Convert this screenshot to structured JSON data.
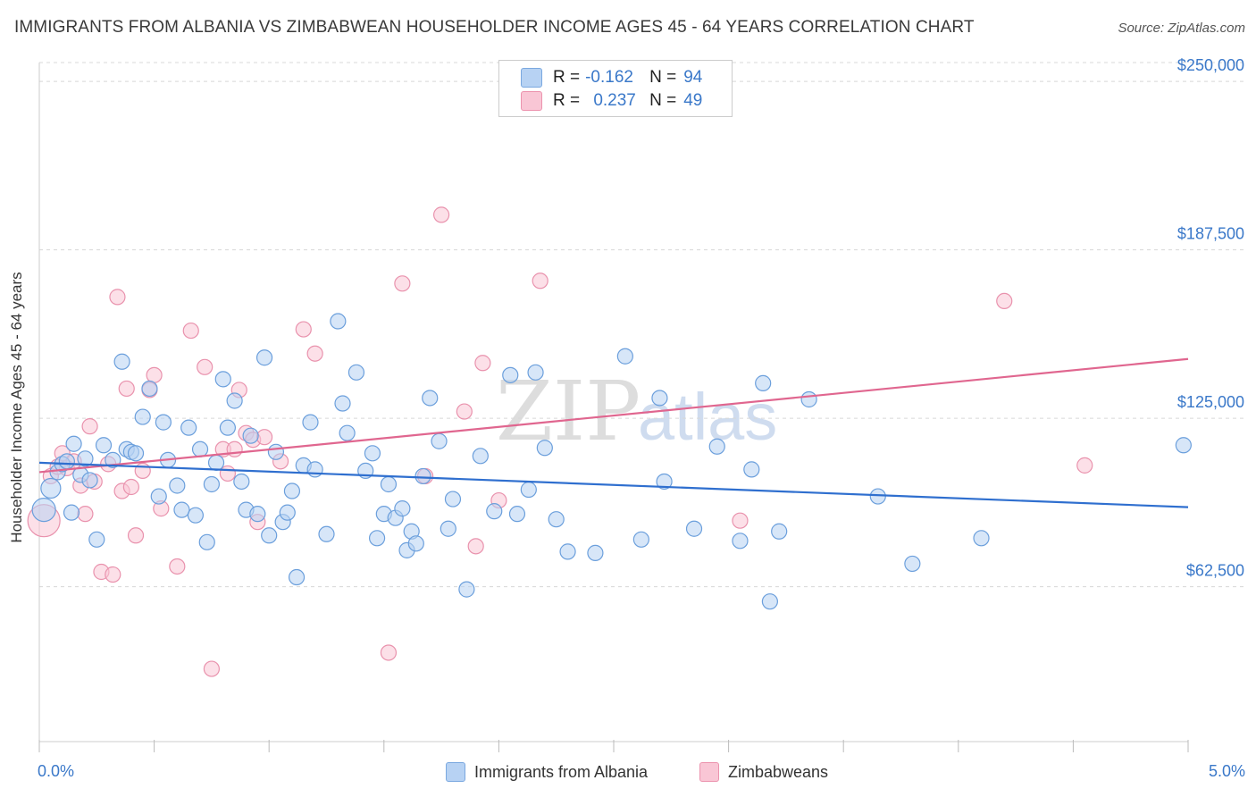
{
  "header": {
    "title": "IMMIGRANTS FROM ALBANIA VS ZIMBABWEAN HOUSEHOLDER INCOME AGES 45 - 64 YEARS CORRELATION CHART",
    "source": "Source: ZipAtlas.com"
  },
  "legend": {
    "rows": [
      {
        "r_label": "R =",
        "r_value": "-0.162",
        "n_label": "N =",
        "n_value": "94"
      },
      {
        "r_label": "R =",
        "r_value": "0.237",
        "n_label": "N =",
        "n_value": "49"
      }
    ]
  },
  "bottom_legend": {
    "series1": "Immigrants from Albania",
    "series2": "Zimbabweans"
  },
  "watermark": {
    "zip": "ZIP",
    "atlas": "atlas"
  },
  "colors": {
    "blue_fill": "#b7d2f3",
    "blue_stroke": "#6b9fdc",
    "blue_line": "#2f6fcf",
    "pink_fill": "#f9c6d5",
    "pink_stroke": "#e992ad",
    "pink_line": "#e0668f",
    "tick_label": "#3a78c9",
    "grid": "#d8d8d8"
  },
  "chart_data": {
    "type": "scatter",
    "title": "IMMIGRANTS FROM ALBANIA VS ZIMBABWEAN HOUSEHOLDER INCOME AGES 45 - 64 YEARS CORRELATION CHART",
    "xlabel": "",
    "ylabel": "Householder Income Ages 45 - 64 years",
    "xlim": [
      0,
      5
    ],
    "ylim": [
      5000,
      257000
    ],
    "x_tick_labels": [
      {
        "value": 0,
        "label": "0.0%"
      },
      {
        "value": 5,
        "label": "5.0%"
      }
    ],
    "x_minor_ticks": [
      0,
      0.5,
      1,
      1.5,
      2,
      2.5,
      3,
      3.5,
      4,
      4.5,
      5
    ],
    "y_ticks": [
      {
        "value": 62500,
        "label": "$62,500"
      },
      {
        "value": 125000,
        "label": "$125,000"
      },
      {
        "value": 187500,
        "label": "$187,500"
      },
      {
        "value": 250000,
        "label": "$250,000"
      }
    ],
    "grid": "horizontal dashed",
    "legend_position": "top-center",
    "series": [
      {
        "name": "Immigrants from Albania",
        "color": "blue",
        "r": -0.162,
        "n": 94,
        "trend": {
          "x": [
            0,
            5
          ],
          "y": [
            108500,
            92000
          ]
        },
        "points": [
          [
            0.02,
            91000
          ],
          [
            0.05,
            99000
          ],
          [
            0.08,
            105000
          ],
          [
            0.1,
            108000
          ],
          [
            0.12,
            109000
          ],
          [
            0.14,
            90000
          ],
          [
            0.15,
            115500
          ],
          [
            0.18,
            104000
          ],
          [
            0.2,
            110000
          ],
          [
            0.22,
            102000
          ],
          [
            0.25,
            80000
          ],
          [
            0.28,
            115000
          ],
          [
            0.32,
            109500
          ],
          [
            0.36,
            146000
          ],
          [
            0.38,
            113500
          ],
          [
            0.4,
            112500
          ],
          [
            0.42,
            112000
          ],
          [
            0.45,
            125500
          ],
          [
            0.48,
            136000
          ],
          [
            0.52,
            96000
          ],
          [
            0.54,
            123500
          ],
          [
            0.56,
            109500
          ],
          [
            0.6,
            100000
          ],
          [
            0.62,
            91000
          ],
          [
            0.65,
            121500
          ],
          [
            0.68,
            89000
          ],
          [
            0.7,
            113500
          ],
          [
            0.73,
            79000
          ],
          [
            0.75,
            100500
          ],
          [
            0.77,
            108500
          ],
          [
            0.8,
            139500
          ],
          [
            0.82,
            121500
          ],
          [
            0.85,
            131500
          ],
          [
            0.88,
            101500
          ],
          [
            0.9,
            91000
          ],
          [
            0.92,
            118500
          ],
          [
            0.95,
            89500
          ],
          [
            0.98,
            147500
          ],
          [
            1.0,
            81500
          ],
          [
            1.03,
            112500
          ],
          [
            1.06,
            86500
          ],
          [
            1.08,
            90000
          ],
          [
            1.1,
            98000
          ],
          [
            1.12,
            66000
          ],
          [
            1.15,
            107500
          ],
          [
            1.18,
            123500
          ],
          [
            1.2,
            106000
          ],
          [
            1.25,
            82000
          ],
          [
            1.3,
            161000
          ],
          [
            1.32,
            130500
          ],
          [
            1.34,
            119500
          ],
          [
            1.38,
            142000
          ],
          [
            1.42,
            105500
          ],
          [
            1.45,
            112000
          ],
          [
            1.47,
            80500
          ],
          [
            1.5,
            89500
          ],
          [
            1.52,
            100500
          ],
          [
            1.55,
            88000
          ],
          [
            1.58,
            91500
          ],
          [
            1.6,
            76000
          ],
          [
            1.62,
            83000
          ],
          [
            1.64,
            78500
          ],
          [
            1.67,
            103500
          ],
          [
            1.7,
            132500
          ],
          [
            1.74,
            116500
          ],
          [
            1.78,
            84000
          ],
          [
            1.8,
            95000
          ],
          [
            1.86,
            61500
          ],
          [
            1.92,
            111000
          ],
          [
            1.98,
            90500
          ],
          [
            2.05,
            141000
          ],
          [
            2.08,
            89500
          ],
          [
            2.13,
            98500
          ],
          [
            2.16,
            142000
          ],
          [
            2.2,
            114000
          ],
          [
            2.25,
            87500
          ],
          [
            2.3,
            75500
          ],
          [
            2.42,
            75000
          ],
          [
            2.55,
            148000
          ],
          [
            2.62,
            80000
          ],
          [
            2.7,
            132500
          ],
          [
            2.72,
            101500
          ],
          [
            2.85,
            84000
          ],
          [
            2.95,
            114500
          ],
          [
            3.05,
            79500
          ],
          [
            3.1,
            106000
          ],
          [
            3.15,
            138000
          ],
          [
            3.18,
            57000
          ],
          [
            3.22,
            83000
          ],
          [
            3.35,
            132000
          ],
          [
            3.65,
            96000
          ],
          [
            3.8,
            71000
          ],
          [
            4.1,
            80500
          ],
          [
            4.98,
            115000
          ]
        ]
      },
      {
        "name": "Zimbabweans",
        "color": "pink",
        "r": 0.237,
        "n": 49,
        "trend": {
          "x": [
            0,
            5
          ],
          "y": [
            105000,
            147000
          ]
        },
        "points": [
          [
            0.02,
            87000
          ],
          [
            0.05,
            103500
          ],
          [
            0.08,
            107000
          ],
          [
            0.1,
            112000
          ],
          [
            0.12,
            106500
          ],
          [
            0.15,
            109000
          ],
          [
            0.18,
            100000
          ],
          [
            0.2,
            89500
          ],
          [
            0.22,
            122000
          ],
          [
            0.24,
            101500
          ],
          [
            0.27,
            68000
          ],
          [
            0.3,
            108000
          ],
          [
            0.32,
            67000
          ],
          [
            0.34,
            170000
          ],
          [
            0.36,
            98000
          ],
          [
            0.38,
            136000
          ],
          [
            0.4,
            99500
          ],
          [
            0.42,
            81500
          ],
          [
            0.45,
            105500
          ],
          [
            0.48,
            135500
          ],
          [
            0.5,
            141000
          ],
          [
            0.53,
            91500
          ],
          [
            0.6,
            70000
          ],
          [
            0.66,
            157500
          ],
          [
            0.72,
            144000
          ],
          [
            0.75,
            32000
          ],
          [
            0.8,
            113500
          ],
          [
            0.82,
            104500
          ],
          [
            0.85,
            113500
          ],
          [
            0.87,
            135500
          ],
          [
            0.9,
            119500
          ],
          [
            0.93,
            117000
          ],
          [
            0.95,
            86500
          ],
          [
            0.98,
            118000
          ],
          [
            1.05,
            109000
          ],
          [
            1.15,
            158000
          ],
          [
            1.2,
            149000
          ],
          [
            1.52,
            38000
          ],
          [
            1.58,
            175000
          ],
          [
            1.68,
            103500
          ],
          [
            1.75,
            200500
          ],
          [
            1.85,
            127500
          ],
          [
            1.9,
            77500
          ],
          [
            1.93,
            145500
          ],
          [
            2.0,
            94500
          ],
          [
            2.18,
            176000
          ],
          [
            3.05,
            87000
          ],
          [
            4.2,
            168500
          ],
          [
            4.55,
            107500
          ]
        ]
      }
    ]
  }
}
